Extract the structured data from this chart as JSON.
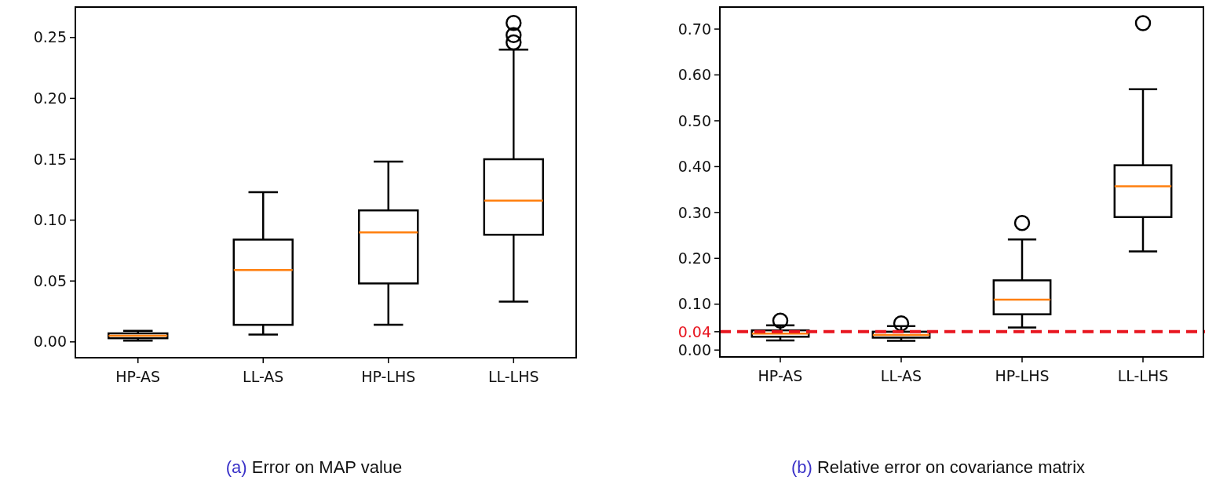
{
  "chart_data": [
    {
      "type": "box",
      "title": "(a) Error on MAP value",
      "categories": [
        "HP-AS",
        "LL-AS",
        "HP-LHS",
        "LL-LHS"
      ],
      "color": "#000000",
      "ylim": [
        -0.013,
        0.275
      ],
      "yticks": [
        {
          "value": 0,
          "label": "0.00"
        },
        0.05,
        {
          "value": 0.1,
          "label": "0.10"
        },
        0.15,
        {
          "value": 0.2,
          "label": "0.20"
        },
        0.25
      ],
      "boxes": [
        {
          "low": 0.001,
          "q1": 0.003,
          "median": 0.005,
          "q3": 0.007,
          "high": 0.009
        },
        {
          "low": 0.006,
          "q1": 0.014,
          "median": 0.059,
          "q3": 0.084,
          "high": 0.123
        },
        {
          "low": 0.014,
          "q1": 0.048,
          "median": 0.09,
          "q3": 0.108,
          "high": 0.148
        },
        {
          "low": 0.033,
          "q1": 0.088,
          "median": 0.116,
          "q3": 0.15,
          "high": 0.24,
          "outliers": [
            0.246,
            0.252,
            0.262
          ]
        }
      ]
    },
    {
      "type": "box",
      "title": "(b) Relative error on covariance matrix",
      "categories": [
        "HP-AS",
        "LL-AS",
        "HP-LHS",
        "LL-LHS"
      ],
      "color": "#000000",
      "ylim": [
        -0.015,
        0.748
      ],
      "yticks": [
        {
          "value": 0,
          "label": "0.00"
        },
        {
          "value": 0.1,
          "label": "0.10"
        },
        {
          "value": 0.2,
          "label": "0.20"
        },
        {
          "value": 0.3,
          "label": "0.30"
        },
        {
          "value": 0.4,
          "label": "0.40"
        },
        {
          "value": 0.5,
          "label": "0.50"
        },
        {
          "value": 0.6,
          "label": "0.60"
        },
        {
          "value": 0.7,
          "label": "0.70"
        }
      ],
      "ref_lines": [
        {
          "axis": "y",
          "value": 0.04,
          "label": "0.04",
          "color": "#e8151f",
          "line_style": "dashed"
        }
      ],
      "boxes": [
        {
          "low": 0.021,
          "q1": 0.029,
          "median": 0.036,
          "q3": 0.043,
          "high": 0.054,
          "outliers": [
            0.064
          ]
        },
        {
          "low": 0.02,
          "q1": 0.027,
          "median": 0.033,
          "q3": 0.04,
          "high": 0.052,
          "outliers": [
            0.058
          ]
        },
        {
          "low": 0.049,
          "q1": 0.078,
          "median": 0.11,
          "q3": 0.152,
          "high": 0.241,
          "outliers": [
            0.277
          ]
        },
        {
          "low": 0.215,
          "q1": 0.29,
          "median": 0.357,
          "q3": 0.403,
          "high": 0.569,
          "outliers": [
            0.713
          ]
        }
      ]
    }
  ]
}
